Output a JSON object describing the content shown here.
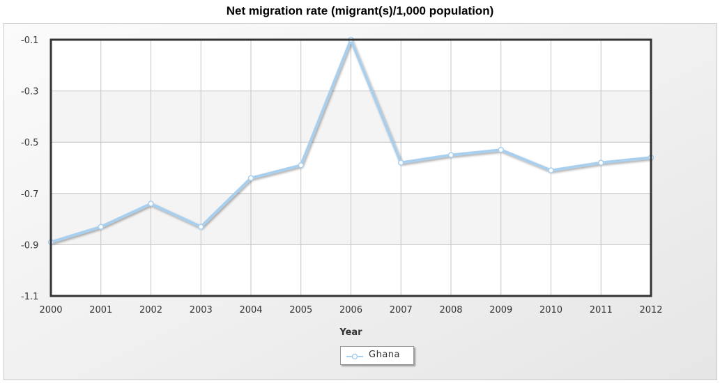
{
  "chart_data": {
    "type": "line",
    "title": "Net migration rate (migrant(s)/1,000 population)",
    "xlabel": "Year",
    "ylabel": "",
    "x": [
      "2000",
      "2001",
      "2002",
      "2003",
      "2004",
      "2005",
      "2006",
      "2007",
      "2008",
      "2009",
      "2010",
      "2011",
      "2012"
    ],
    "series": [
      {
        "name": "Ghana",
        "values": [
          -0.89,
          -0.83,
          -0.74,
          -0.83,
          -0.64,
          -0.59,
          -0.1,
          -0.58,
          -0.55,
          -0.53,
          -0.61,
          -0.58,
          -0.56
        ],
        "color": "#a9cfee"
      }
    ],
    "ylim": [
      -1.1,
      -0.1
    ],
    "yticks": [
      "-0.1",
      "-0.3",
      "-0.5",
      "-0.7",
      "-0.9",
      "-1.1"
    ],
    "grid": true,
    "legend_position": "bottom-center"
  }
}
